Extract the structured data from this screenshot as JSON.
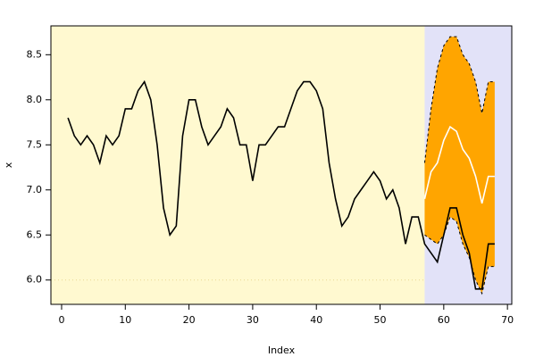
{
  "chart_data": {
    "type": "line",
    "x_label": "Index",
    "y_label": "x",
    "x": [
      1,
      2,
      3,
      4,
      5,
      6,
      7,
      8,
      9,
      10,
      11,
      12,
      13,
      14,
      15,
      16,
      17,
      18,
      19,
      20,
      21,
      22,
      23,
      24,
      25,
      26,
      27,
      28,
      29,
      30,
      31,
      32,
      33,
      34,
      35,
      36,
      37,
      38,
      39,
      40,
      41,
      42,
      43,
      44,
      45,
      46,
      47,
      48,
      49,
      50,
      51,
      52,
      53,
      54,
      55,
      56,
      57,
      58,
      59,
      60,
      61,
      62,
      63,
      64,
      65,
      66,
      67,
      68
    ],
    "series": [
      {
        "color": "#000000",
        "values": [
          7.8,
          7.6,
          7.5,
          7.6,
          7.5,
          7.3,
          7.6,
          7.5,
          7.6,
          7.9,
          7.9,
          8.1,
          8.2,
          8.0,
          7.5,
          6.8,
          6.5,
          6.6,
          7.6,
          8.0,
          8.0,
          7.7,
          7.5,
          7.6,
          7.7,
          7.9,
          7.8,
          7.5,
          7.5,
          7.1,
          7.5,
          7.5,
          7.6,
          7.7,
          7.7,
          7.9,
          8.1,
          8.2,
          8.2,
          8.1,
          7.9,
          7.3,
          6.9,
          6.6,
          6.7,
          6.9,
          7.0,
          7.1,
          7.2,
          7.1,
          6.9,
          7.0,
          6.8,
          6.4,
          6.7,
          6.7,
          6.4,
          6.3,
          6.2,
          6.5,
          6.8,
          6.8,
          6.5,
          6.3,
          5.9,
          5.9,
          6.4,
          6.4
        ]
      },
      {
        "color": "#ffffff",
        "values": [
          null,
          null,
          null,
          null,
          null,
          null,
          null,
          null,
          null,
          null,
          null,
          null,
          null,
          null,
          null,
          null,
          null,
          null,
          null,
          null,
          null,
          null,
          null,
          null,
          null,
          null,
          null,
          null,
          null,
          null,
          null,
          null,
          null,
          null,
          null,
          null,
          null,
          null,
          null,
          null,
          null,
          null,
          null,
          null,
          null,
          null,
          null,
          null,
          null,
          null,
          null,
          null,
          null,
          null,
          null,
          null,
          6.9,
          7.2,
          7.3,
          7.55,
          7.7,
          7.65,
          7.45,
          7.35,
          7.15,
          6.85,
          7.15,
          7.15
        ]
      }
    ],
    "band": {
      "color": "#ffa500",
      "upper": [
        null,
        null,
        null,
        null,
        null,
        null,
        null,
        null,
        null,
        null,
        null,
        null,
        null,
        null,
        null,
        null,
        null,
        null,
        null,
        null,
        null,
        null,
        null,
        null,
        null,
        null,
        null,
        null,
        null,
        null,
        null,
        null,
        null,
        null,
        null,
        null,
        null,
        null,
        null,
        null,
        null,
        null,
        null,
        null,
        null,
        null,
        null,
        null,
        null,
        null,
        null,
        null,
        null,
        null,
        null,
        null,
        7.3,
        7.9,
        8.35,
        8.6,
        8.7,
        8.7,
        8.5,
        8.4,
        8.2,
        7.85,
        8.2,
        8.2
      ],
      "lower": [
        null,
        null,
        null,
        null,
        null,
        null,
        null,
        null,
        null,
        null,
        null,
        null,
        null,
        null,
        null,
        null,
        null,
        null,
        null,
        null,
        null,
        null,
        null,
        null,
        null,
        null,
        null,
        null,
        null,
        null,
        null,
        null,
        null,
        null,
        null,
        null,
        null,
        null,
        null,
        null,
        null,
        null,
        null,
        null,
        null,
        null,
        null,
        null,
        null,
        null,
        null,
        null,
        null,
        null,
        null,
        null,
        6.5,
        6.45,
        6.4,
        6.5,
        6.7,
        6.65,
        6.4,
        6.25,
        6.0,
        5.85,
        6.15,
        6.15
      ]
    },
    "forecast_start": 57,
    "history_color": "#fff9d0",
    "forecast_color": "#e2e2f8",
    "hline": 6,
    "xlim": [
      -1.68,
      70.68
    ],
    "ylim": [
      5.73,
      8.82
    ],
    "xticks": [
      0,
      10,
      20,
      30,
      40,
      50,
      60,
      70
    ],
    "yticks": [
      {
        "value": 6,
        "label": "6.0"
      },
      {
        "value": 6.5,
        "label": "6.5"
      },
      {
        "value": 7,
        "label": "7.0"
      },
      {
        "value": 7.5,
        "label": "7.5"
      },
      {
        "value": 8,
        "label": "8.0"
      },
      {
        "value": 8.5,
        "label": "8.5"
      }
    ]
  }
}
